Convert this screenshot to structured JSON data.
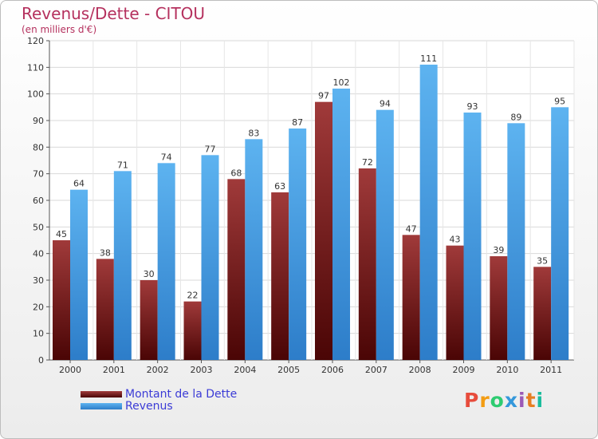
{
  "chart_data": {
    "type": "bar",
    "title": "Revenus/Dette - CITOU",
    "subtitle": "(en milliers d'€)",
    "categories": [
      "2000",
      "2001",
      "2002",
      "2003",
      "2004",
      "2005",
      "2006",
      "2007",
      "2008",
      "2009",
      "2010",
      "2011"
    ],
    "series": [
      {
        "name": "Montant de la Dette",
        "values": [
          45,
          38,
          30,
          22,
          68,
          63,
          97,
          72,
          47,
          43,
          39,
          35
        ],
        "color": "#7a1a1e"
      },
      {
        "name": "Revenus",
        "values": [
          64,
          71,
          74,
          77,
          83,
          87,
          102,
          94,
          111,
          93,
          89,
          95
        ],
        "color": "#4aa3e6"
      }
    ],
    "ylim": [
      0,
      120
    ],
    "yticks": [
      0,
      10,
      20,
      30,
      40,
      50,
      60,
      70,
      80,
      90,
      100,
      110,
      120
    ],
    "grid": true,
    "legend_position": "bottom-left",
    "data_labels": true
  },
  "brand": {
    "logo_text": "Proxiti",
    "logo_colors": [
      "#e74c3c",
      "#f39c12",
      "#2ecc71",
      "#3498db",
      "#9b59b6",
      "#e67e22",
      "#1abc9c"
    ]
  }
}
